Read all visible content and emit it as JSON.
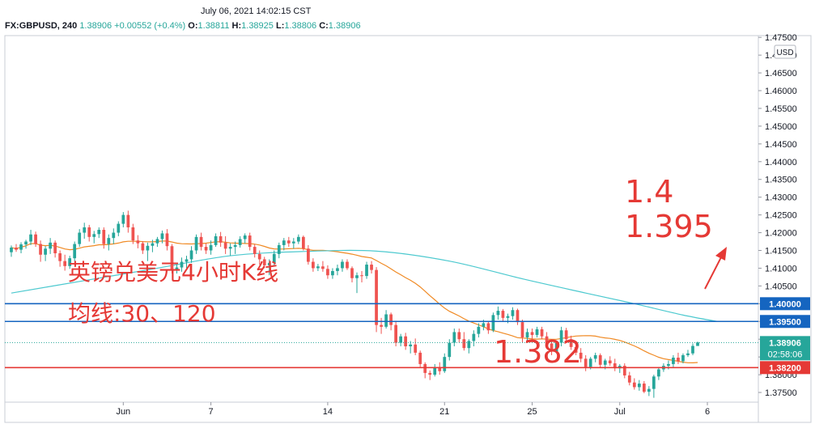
{
  "header": {
    "datetime": "July 06, 2021 14:02:15 CST",
    "symbol": "FX:GBPUSD, 240",
    "last": "1.38906",
    "change": "+0.00552 (+0.4%)",
    "open_label": "O:",
    "open": "1.38811",
    "high_label": "H:",
    "high": "1.38925",
    "low_label": "L:",
    "low": "1.38806",
    "close_label": "C:",
    "close": "1.38906"
  },
  "colors": {
    "up": "#26a69a",
    "down": "#ef5350",
    "ma30": "#f08a24",
    "ma120": "#4dc9cf",
    "hline_blue": "#1565c0",
    "hline_red": "#e53935",
    "annotation": "#e53935"
  },
  "chart_data": {
    "type": "candlestick",
    "currency": "USD",
    "ylim": [
      1.3725,
      1.4755
    ],
    "y_ticks": [
      "1.37500",
      "1.38000",
      "1.38500",
      "1.39000",
      "1.39500",
      "1.40000",
      "1.40500",
      "1.41000",
      "1.41500",
      "1.42000",
      "1.42500",
      "1.43000",
      "1.43500",
      "1.44000",
      "1.44500",
      "1.45000",
      "1.45500",
      "1.46000",
      "1.46500",
      "1.47000",
      "1.47500"
    ],
    "x_ticks": [
      {
        "label": "Jun",
        "index": 23
      },
      {
        "label": "7",
        "index": 41
      },
      {
        "label": "14",
        "index": 65
      },
      {
        "label": "21",
        "index": 89
      },
      {
        "label": "25",
        "index": 107
      },
      {
        "label": "Jul",
        "index": 125
      },
      {
        "label": "6",
        "index": 143
      }
    ],
    "candles": [
      [
        1.4145,
        1.4164,
        1.4132,
        1.4158
      ],
      [
        1.4158,
        1.4168,
        1.4146,
        1.4152
      ],
      [
        1.4152,
        1.4173,
        1.4142,
        1.4167
      ],
      [
        1.4167,
        1.418,
        1.4155,
        1.4175
      ],
      [
        1.4175,
        1.4208,
        1.4165,
        1.4195
      ],
      [
        1.4195,
        1.4203,
        1.416,
        1.4168
      ],
      [
        1.4168,
        1.4178,
        1.4118,
        1.4138
      ],
      [
        1.4138,
        1.4162,
        1.412,
        1.4155
      ],
      [
        1.4155,
        1.4185,
        1.414,
        1.4172
      ],
      [
        1.4172,
        1.4178,
        1.413,
        1.4142
      ],
      [
        1.4142,
        1.415,
        1.4104,
        1.412
      ],
      [
        1.412,
        1.4138,
        1.4093,
        1.4106
      ],
      [
        1.4106,
        1.4135,
        1.4098,
        1.4128
      ],
      [
        1.4128,
        1.4175,
        1.412,
        1.4168
      ],
      [
        1.4168,
        1.421,
        1.416,
        1.42
      ],
      [
        1.42,
        1.4228,
        1.4183,
        1.4215
      ],
      [
        1.4215,
        1.4222,
        1.4175,
        1.4188
      ],
      [
        1.4188,
        1.4205,
        1.417,
        1.4196
      ],
      [
        1.4196,
        1.4215,
        1.4185,
        1.4208
      ],
      [
        1.4208,
        1.4215,
        1.4155,
        1.4168
      ],
      [
        1.4168,
        1.4195,
        1.415,
        1.4185
      ],
      [
        1.4185,
        1.4212,
        1.4168,
        1.42
      ],
      [
        1.42,
        1.4232,
        1.419,
        1.4225
      ],
      [
        1.4225,
        1.4258,
        1.4215,
        1.425
      ],
      [
        1.425,
        1.4262,
        1.42,
        1.4215
      ],
      [
        1.4215,
        1.4225,
        1.4168,
        1.4178
      ],
      [
        1.4178,
        1.4193,
        1.4156,
        1.417
      ],
      [
        1.417,
        1.4176,
        1.414,
        1.415
      ],
      [
        1.415,
        1.4172,
        1.412,
        1.4163
      ],
      [
        1.4163,
        1.418,
        1.4145,
        1.417
      ],
      [
        1.417,
        1.4188,
        1.416,
        1.4182
      ],
      [
        1.4182,
        1.4206,
        1.417,
        1.4198
      ],
      [
        1.4198,
        1.421,
        1.415,
        1.4162
      ],
      [
        1.4162,
        1.4168,
        1.4085,
        1.4095
      ],
      [
        1.4095,
        1.411,
        1.4085,
        1.4102
      ],
      [
        1.4102,
        1.413,
        1.409,
        1.4118
      ],
      [
        1.4118,
        1.4135,
        1.41,
        1.4125
      ],
      [
        1.4125,
        1.4162,
        1.4115,
        1.415
      ],
      [
        1.415,
        1.4195,
        1.414,
        1.4188
      ],
      [
        1.4188,
        1.42,
        1.415,
        1.416
      ],
      [
        1.416,
        1.417,
        1.414,
        1.415
      ],
      [
        1.415,
        1.4178,
        1.4138,
        1.4165
      ],
      [
        1.4165,
        1.4198,
        1.416,
        1.419
      ],
      [
        1.419,
        1.4202,
        1.416,
        1.4172
      ],
      [
        1.4172,
        1.419,
        1.414,
        1.4155
      ],
      [
        1.4155,
        1.417,
        1.4135,
        1.416
      ],
      [
        1.416,
        1.4175,
        1.414,
        1.4165
      ],
      [
        1.4165,
        1.419,
        1.4158,
        1.4182
      ],
      [
        1.4182,
        1.4198,
        1.417,
        1.4192
      ],
      [
        1.4192,
        1.42,
        1.415,
        1.416
      ],
      [
        1.416,
        1.4168,
        1.413,
        1.414
      ],
      [
        1.414,
        1.415,
        1.411,
        1.4125
      ],
      [
        1.4125,
        1.4132,
        1.41,
        1.4108
      ],
      [
        1.4108,
        1.4125,
        1.408,
        1.4115
      ],
      [
        1.4115,
        1.415,
        1.4108,
        1.414
      ],
      [
        1.414,
        1.4172,
        1.4128,
        1.4165
      ],
      [
        1.4165,
        1.4185,
        1.415,
        1.4178
      ],
      [
        1.4178,
        1.4188,
        1.416,
        1.417
      ],
      [
        1.417,
        1.4185,
        1.4155,
        1.4175
      ],
      [
        1.4175,
        1.4195,
        1.4168,
        1.4188
      ],
      [
        1.4188,
        1.4192,
        1.415,
        1.4155
      ],
      [
        1.4155,
        1.4165,
        1.411,
        1.4118
      ],
      [
        1.4118,
        1.4128,
        1.409,
        1.41
      ],
      [
        1.41,
        1.4112,
        1.4092,
        1.4105
      ],
      [
        1.4105,
        1.412,
        1.409,
        1.4098
      ],
      [
        1.4098,
        1.4108,
        1.407,
        1.408
      ],
      [
        1.408,
        1.41,
        1.407,
        1.4092
      ],
      [
        1.4092,
        1.411,
        1.408,
        1.41
      ],
      [
        1.41,
        1.4125,
        1.409,
        1.4118
      ],
      [
        1.4118,
        1.4125,
        1.4095,
        1.41
      ],
      [
        1.41,
        1.4105,
        1.406,
        1.4072
      ],
      [
        1.4072,
        1.4088,
        1.403,
        1.408
      ],
      [
        1.408,
        1.4092,
        1.406,
        1.4078
      ],
      [
        1.4078,
        1.4118,
        1.407,
        1.411
      ],
      [
        1.411,
        1.412,
        1.4085,
        1.4095
      ],
      [
        1.4095,
        1.4103,
        1.392,
        1.394
      ],
      [
        1.394,
        1.396,
        1.3915,
        1.3935
      ],
      [
        1.3935,
        1.3982,
        1.393,
        1.397
      ],
      [
        1.397,
        1.3975,
        1.3925,
        1.394
      ],
      [
        1.394,
        1.3952,
        1.388,
        1.389
      ],
      [
        1.389,
        1.3915,
        1.388,
        1.3908
      ],
      [
        1.3908,
        1.3918,
        1.387,
        1.388
      ],
      [
        1.388,
        1.3895,
        1.386,
        1.3885
      ],
      [
        1.3885,
        1.3902,
        1.3855,
        1.3862
      ],
      [
        1.3862,
        1.3868,
        1.3822,
        1.383
      ],
      [
        1.383,
        1.3835,
        1.379,
        1.3805
      ],
      [
        1.3805,
        1.3812,
        1.3785,
        1.38
      ],
      [
        1.38,
        1.383,
        1.3795,
        1.382
      ],
      [
        1.382,
        1.3835,
        1.38,
        1.381
      ],
      [
        1.381,
        1.386,
        1.3805,
        1.385
      ],
      [
        1.385,
        1.39,
        1.384,
        1.389
      ],
      [
        1.389,
        1.393,
        1.388,
        1.392
      ],
      [
        1.392,
        1.393,
        1.389,
        1.39
      ],
      [
        1.39,
        1.392,
        1.3868,
        1.3875
      ],
      [
        1.3875,
        1.39,
        1.386,
        1.3895
      ],
      [
        1.3895,
        1.3925,
        1.388,
        1.3915
      ],
      [
        1.3915,
        1.3945,
        1.3905,
        1.3935
      ],
      [
        1.3935,
        1.3955,
        1.3925,
        1.3945
      ],
      [
        1.3945,
        1.395,
        1.3915,
        1.3925
      ],
      [
        1.3925,
        1.3975,
        1.392,
        1.3968
      ],
      [
        1.3968,
        1.3992,
        1.3955,
        1.398
      ],
      [
        1.398,
        1.3985,
        1.395,
        1.396
      ],
      [
        1.396,
        1.3972,
        1.3945,
        1.3965
      ],
      [
        1.3965,
        1.399,
        1.3955,
        1.3982
      ],
      [
        1.3982,
        1.3986,
        1.394,
        1.3948
      ],
      [
        1.3948,
        1.3955,
        1.389,
        1.3905
      ],
      [
        1.3905,
        1.393,
        1.3895,
        1.392
      ],
      [
        1.392,
        1.393,
        1.39,
        1.3912
      ],
      [
        1.3912,
        1.3935,
        1.3905,
        1.3928
      ],
      [
        1.3928,
        1.3935,
        1.39,
        1.3908
      ],
      [
        1.3908,
        1.392,
        1.388,
        1.3888
      ],
      [
        1.3888,
        1.39,
        1.3855,
        1.3865
      ],
      [
        1.3865,
        1.3895,
        1.386,
        1.389
      ],
      [
        1.389,
        1.3935,
        1.388,
        1.3925
      ],
      [
        1.3925,
        1.3932,
        1.3895,
        1.39
      ],
      [
        1.39,
        1.391,
        1.387,
        1.3878
      ],
      [
        1.3878,
        1.3888,
        1.3855,
        1.3862
      ],
      [
        1.3862,
        1.3875,
        1.3835,
        1.3845
      ],
      [
        1.3845,
        1.3855,
        1.381,
        1.3822
      ],
      [
        1.3822,
        1.385,
        1.3815,
        1.3845
      ],
      [
        1.3845,
        1.3862,
        1.3835,
        1.3855
      ],
      [
        1.3855,
        1.386,
        1.382,
        1.3828
      ],
      [
        1.3828,
        1.3845,
        1.3815,
        1.384
      ],
      [
        1.384,
        1.3852,
        1.3825,
        1.3832
      ],
      [
        1.3832,
        1.3845,
        1.381,
        1.3818
      ],
      [
        1.3818,
        1.383,
        1.3805,
        1.3825
      ],
      [
        1.3825,
        1.3832,
        1.379,
        1.3798
      ],
      [
        1.3798,
        1.3808,
        1.377,
        1.3778
      ],
      [
        1.3778,
        1.379,
        1.3758,
        1.3765
      ],
      [
        1.3765,
        1.3785,
        1.3755,
        1.3775
      ],
      [
        1.3775,
        1.3782,
        1.3748,
        1.3752
      ],
      [
        1.3752,
        1.3768,
        1.374,
        1.376
      ],
      [
        1.376,
        1.38,
        1.3735,
        1.3795
      ],
      [
        1.3795,
        1.3822,
        1.3785,
        1.3815
      ],
      [
        1.3815,
        1.3832,
        1.3808,
        1.3825
      ],
      [
        1.3825,
        1.384,
        1.3815,
        1.383
      ],
      [
        1.383,
        1.3855,
        1.3822,
        1.3848
      ],
      [
        1.3848,
        1.3862,
        1.383,
        1.3838
      ],
      [
        1.3838,
        1.386,
        1.3832,
        1.3855
      ],
      [
        1.3855,
        1.387,
        1.385,
        1.386
      ],
      [
        1.386,
        1.3888,
        1.3855,
        1.3881
      ],
      [
        1.3881,
        1.3893,
        1.3881,
        1.3891
      ]
    ],
    "ma_periods": [
      30,
      120
    ],
    "ma120_points": [
      [
        0,
        1.403
      ],
      [
        15,
        1.4065
      ],
      [
        30,
        1.41
      ],
      [
        45,
        1.4135
      ],
      [
        60,
        1.4147
      ],
      [
        75,
        1.4148
      ],
      [
        90,
        1.412
      ],
      [
        105,
        1.407
      ],
      [
        118,
        1.403
      ],
      [
        128,
        1.4
      ],
      [
        138,
        1.3968
      ],
      [
        145,
        1.395
      ]
    ],
    "horizontal_lines": [
      {
        "price": 1.4,
        "label": "1.40000",
        "color": "#1565c0"
      },
      {
        "price": 1.395,
        "label": "1.39500",
        "color": "#1565c0"
      },
      {
        "price": 1.382,
        "label": "1.38200",
        "color": "#e53935"
      }
    ],
    "last_price": {
      "label": "1.38906",
      "countdown": "02:58:06"
    },
    "annotations": {
      "title": "英镑兑美元4小时K线",
      "ma_note": "均线:30、120",
      "level_a": "1.4",
      "level_b": "1.395",
      "level_c": "1.382"
    }
  }
}
